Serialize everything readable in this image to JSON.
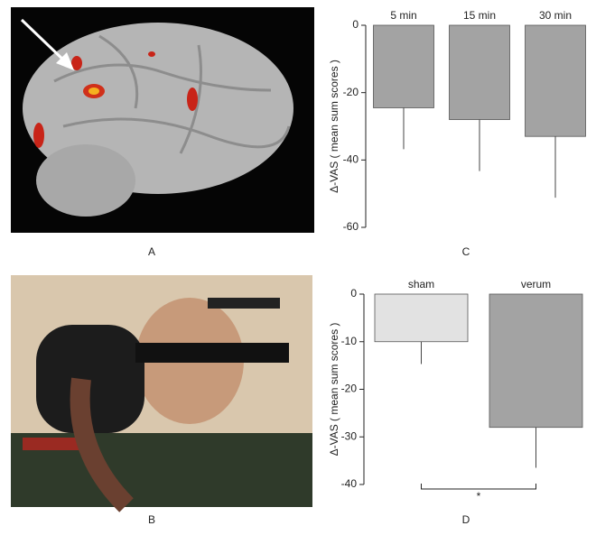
{
  "panel_labels": [
    "A",
    "B",
    "C",
    "D"
  ],
  "chart_data": [
    {
      "type": "bar",
      "ylabel": "Δ-VAS ( mean sum scores )",
      "categories": [
        "5 min",
        "15 min",
        "30 min"
      ],
      "values": [
        -24.5,
        -28,
        -33
      ],
      "errors": [
        12.3,
        15.3,
        18.2
      ],
      "colors": [
        "#a3a3a3",
        "#a3a3a3",
        "#a3a3a3"
      ],
      "ylim": [
        -60,
        0
      ],
      "yticks": [
        0,
        -20,
        -40,
        -60
      ]
    },
    {
      "type": "bar",
      "ylabel": "Δ-VAS ( mean sum scores )",
      "categories": [
        "sham",
        "verum"
      ],
      "values": [
        -10,
        -28
      ],
      "errors": [
        4.7,
        8.5
      ],
      "colors": [
        "#e2e2e2",
        "#a3a3a3"
      ],
      "ylim": [
        -40,
        0
      ],
      "yticks": [
        0,
        -10,
        -20,
        -30,
        -40
      ],
      "annotation": "*"
    }
  ]
}
